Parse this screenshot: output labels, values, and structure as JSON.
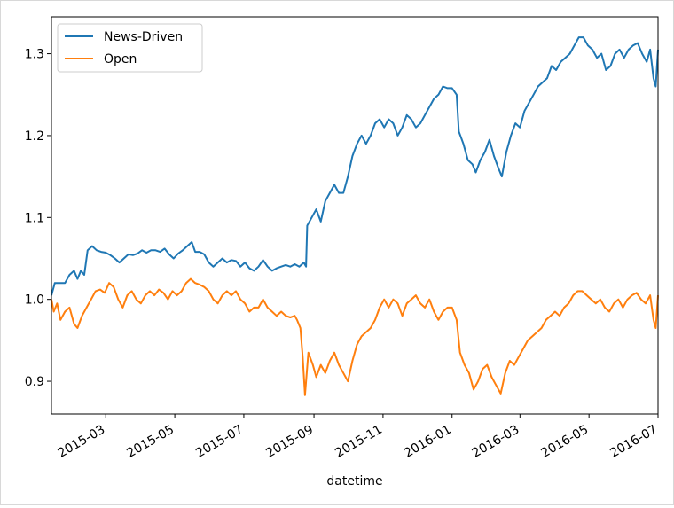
{
  "chart_data": {
    "type": "line",
    "xlabel": "datetime",
    "ylabel": "",
    "title": "",
    "x_range": [
      "2015-01-12",
      "2016-07-01"
    ],
    "ylim": [
      0.86,
      1.345
    ],
    "grid": false,
    "legend_position": "top-left",
    "x_ticks": [
      "2015-03",
      "2015-05",
      "2015-07",
      "2015-09",
      "2015-11",
      "2016-01",
      "2016-03",
      "2016-05",
      "2016-07"
    ],
    "y_ticks": [
      "0.9",
      "1.0",
      "1.1",
      "1.2",
      "1.3"
    ],
    "series": [
      {
        "name": "News-Driven",
        "color": "#1f77b4",
        "points": [
          [
            "2015-01-12",
            1.005
          ],
          [
            "2015-01-15",
            1.02
          ],
          [
            "2015-01-20",
            1.02
          ],
          [
            "2015-01-24",
            1.02
          ],
          [
            "2015-01-28",
            1.03
          ],
          [
            "2015-02-01",
            1.035
          ],
          [
            "2015-02-04",
            1.025
          ],
          [
            "2015-02-07",
            1.035
          ],
          [
            "2015-02-10",
            1.03
          ],
          [
            "2015-02-13",
            1.06
          ],
          [
            "2015-02-17",
            1.065
          ],
          [
            "2015-02-21",
            1.06
          ],
          [
            "2015-02-25",
            1.058
          ],
          [
            "2015-03-01",
            1.057
          ],
          [
            "2015-03-05",
            1.054
          ],
          [
            "2015-03-09",
            1.05
          ],
          [
            "2015-03-13",
            1.045
          ],
          [
            "2015-03-17",
            1.05
          ],
          [
            "2015-03-21",
            1.055
          ],
          [
            "2015-03-25",
            1.054
          ],
          [
            "2015-03-29",
            1.056
          ],
          [
            "2015-04-02",
            1.06
          ],
          [
            "2015-04-06",
            1.057
          ],
          [
            "2015-04-10",
            1.06
          ],
          [
            "2015-04-14",
            1.06
          ],
          [
            "2015-04-18",
            1.058
          ],
          [
            "2015-04-22",
            1.062
          ],
          [
            "2015-04-26",
            1.055
          ],
          [
            "2015-04-30",
            1.05
          ],
          [
            "2015-05-04",
            1.056
          ],
          [
            "2015-05-08",
            1.06
          ],
          [
            "2015-05-12",
            1.065
          ],
          [
            "2015-05-16",
            1.07
          ],
          [
            "2015-05-19",
            1.058
          ],
          [
            "2015-05-23",
            1.058
          ],
          [
            "2015-05-27",
            1.055
          ],
          [
            "2015-05-31",
            1.045
          ],
          [
            "2015-06-04",
            1.04
          ],
          [
            "2015-06-08",
            1.045
          ],
          [
            "2015-06-12",
            1.05
          ],
          [
            "2015-06-16",
            1.045
          ],
          [
            "2015-06-20",
            1.048
          ],
          [
            "2015-06-24",
            1.047
          ],
          [
            "2015-06-28",
            1.04
          ],
          [
            "2015-07-02",
            1.045
          ],
          [
            "2015-07-06",
            1.038
          ],
          [
            "2015-07-10",
            1.035
          ],
          [
            "2015-07-14",
            1.04
          ],
          [
            "2015-07-18",
            1.048
          ],
          [
            "2015-07-22",
            1.04
          ],
          [
            "2015-07-26",
            1.035
          ],
          [
            "2015-07-30",
            1.038
          ],
          [
            "2015-08-03",
            1.04
          ],
          [
            "2015-08-07",
            1.042
          ],
          [
            "2015-08-11",
            1.04
          ],
          [
            "2015-08-15",
            1.043
          ],
          [
            "2015-08-19",
            1.04
          ],
          [
            "2015-08-23",
            1.045
          ],
          [
            "2015-08-25",
            1.04
          ],
          [
            "2015-08-26",
            1.09
          ],
          [
            "2015-08-30",
            1.1
          ],
          [
            "2015-09-03",
            1.11
          ],
          [
            "2015-09-07",
            1.095
          ],
          [
            "2015-09-11",
            1.12
          ],
          [
            "2015-09-15",
            1.13
          ],
          [
            "2015-09-19",
            1.14
          ],
          [
            "2015-09-23",
            1.13
          ],
          [
            "2015-09-27",
            1.13
          ],
          [
            "2015-10-01",
            1.15
          ],
          [
            "2015-10-05",
            1.175
          ],
          [
            "2015-10-09",
            1.19
          ],
          [
            "2015-10-13",
            1.2
          ],
          [
            "2015-10-17",
            1.19
          ],
          [
            "2015-10-21",
            1.2
          ],
          [
            "2015-10-25",
            1.215
          ],
          [
            "2015-10-29",
            1.22
          ],
          [
            "2015-11-02",
            1.21
          ],
          [
            "2015-11-06",
            1.22
          ],
          [
            "2015-11-10",
            1.215
          ],
          [
            "2015-11-14",
            1.2
          ],
          [
            "2015-11-18",
            1.21
          ],
          [
            "2015-11-22",
            1.225
          ],
          [
            "2015-11-26",
            1.22
          ],
          [
            "2015-11-30",
            1.21
          ],
          [
            "2015-12-04",
            1.215
          ],
          [
            "2015-12-08",
            1.225
          ],
          [
            "2015-12-12",
            1.235
          ],
          [
            "2015-12-16",
            1.245
          ],
          [
            "2015-12-20",
            1.25
          ],
          [
            "2015-12-24",
            1.26
          ],
          [
            "2015-12-28",
            1.258
          ],
          [
            "2016-01-01",
            1.258
          ],
          [
            "2016-01-05",
            1.25
          ],
          [
            "2016-01-07",
            1.205
          ],
          [
            "2016-01-11",
            1.19
          ],
          [
            "2016-01-15",
            1.17
          ],
          [
            "2016-01-19",
            1.165
          ],
          [
            "2016-01-22",
            1.155
          ],
          [
            "2016-01-26",
            1.17
          ],
          [
            "2016-01-30",
            1.18
          ],
          [
            "2016-02-03",
            1.195
          ],
          [
            "2016-02-07",
            1.175
          ],
          [
            "2016-02-11",
            1.16
          ],
          [
            "2016-02-14",
            1.15
          ],
          [
            "2016-02-18",
            1.18
          ],
          [
            "2016-02-22",
            1.2
          ],
          [
            "2016-02-26",
            1.215
          ],
          [
            "2016-03-01",
            1.21
          ],
          [
            "2016-03-05",
            1.23
          ],
          [
            "2016-03-09",
            1.24
          ],
          [
            "2016-03-13",
            1.25
          ],
          [
            "2016-03-17",
            1.26
          ],
          [
            "2016-03-21",
            1.265
          ],
          [
            "2016-03-25",
            1.27
          ],
          [
            "2016-03-29",
            1.285
          ],
          [
            "2016-04-02",
            1.28
          ],
          [
            "2016-04-06",
            1.29
          ],
          [
            "2016-04-10",
            1.295
          ],
          [
            "2016-04-14",
            1.3
          ],
          [
            "2016-04-18",
            1.31
          ],
          [
            "2016-04-22",
            1.32
          ],
          [
            "2016-04-26",
            1.32
          ],
          [
            "2016-04-30",
            1.31
          ],
          [
            "2016-05-04",
            1.305
          ],
          [
            "2016-05-08",
            1.295
          ],
          [
            "2016-05-12",
            1.3
          ],
          [
            "2016-05-16",
            1.28
          ],
          [
            "2016-05-20",
            1.285
          ],
          [
            "2016-05-24",
            1.3
          ],
          [
            "2016-05-28",
            1.305
          ],
          [
            "2016-06-01",
            1.295
          ],
          [
            "2016-06-05",
            1.305
          ],
          [
            "2016-06-09",
            1.31
          ],
          [
            "2016-06-13",
            1.313
          ],
          [
            "2016-06-17",
            1.3
          ],
          [
            "2016-06-21",
            1.29
          ],
          [
            "2016-06-24",
            1.305
          ],
          [
            "2016-06-27",
            1.27
          ],
          [
            "2016-06-29",
            1.26
          ],
          [
            "2016-07-01",
            1.305
          ]
        ]
      },
      {
        "name": "Open",
        "color": "#ff7f0e",
        "points": [
          [
            "2015-01-12",
            1.0
          ],
          [
            "2015-01-14",
            0.985
          ],
          [
            "2015-01-17",
            0.995
          ],
          [
            "2015-01-20",
            0.975
          ],
          [
            "2015-01-24",
            0.985
          ],
          [
            "2015-01-28",
            0.99
          ],
          [
            "2015-02-01",
            0.97
          ],
          [
            "2015-02-04",
            0.965
          ],
          [
            "2015-02-08",
            0.98
          ],
          [
            "2015-02-12",
            0.99
          ],
          [
            "2015-02-16",
            1.0
          ],
          [
            "2015-02-20",
            1.01
          ],
          [
            "2015-02-24",
            1.012
          ],
          [
            "2015-02-28",
            1.008
          ],
          [
            "2015-03-04",
            1.02
          ],
          [
            "2015-03-08",
            1.015
          ],
          [
            "2015-03-12",
            1.0
          ],
          [
            "2015-03-16",
            0.99
          ],
          [
            "2015-03-20",
            1.005
          ],
          [
            "2015-03-24",
            1.01
          ],
          [
            "2015-03-28",
            1.0
          ],
          [
            "2015-04-01",
            0.995
          ],
          [
            "2015-04-05",
            1.005
          ],
          [
            "2015-04-09",
            1.01
          ],
          [
            "2015-04-13",
            1.005
          ],
          [
            "2015-04-17",
            1.012
          ],
          [
            "2015-04-21",
            1.008
          ],
          [
            "2015-04-25",
            1.0
          ],
          [
            "2015-04-29",
            1.01
          ],
          [
            "2015-05-03",
            1.005
          ],
          [
            "2015-05-07",
            1.01
          ],
          [
            "2015-05-11",
            1.02
          ],
          [
            "2015-05-15",
            1.025
          ],
          [
            "2015-05-19",
            1.02
          ],
          [
            "2015-05-23",
            1.018
          ],
          [
            "2015-05-27",
            1.015
          ],
          [
            "2015-05-31",
            1.01
          ],
          [
            "2015-06-04",
            1.0
          ],
          [
            "2015-06-08",
            0.995
          ],
          [
            "2015-06-12",
            1.005
          ],
          [
            "2015-06-16",
            1.01
          ],
          [
            "2015-06-20",
            1.005
          ],
          [
            "2015-06-24",
            1.01
          ],
          [
            "2015-06-28",
            1.0
          ],
          [
            "2015-07-02",
            0.995
          ],
          [
            "2015-07-06",
            0.985
          ],
          [
            "2015-07-10",
            0.99
          ],
          [
            "2015-07-14",
            0.99
          ],
          [
            "2015-07-18",
            1.0
          ],
          [
            "2015-07-22",
            0.99
          ],
          [
            "2015-07-26",
            0.985
          ],
          [
            "2015-07-30",
            0.98
          ],
          [
            "2015-08-03",
            0.985
          ],
          [
            "2015-08-07",
            0.98
          ],
          [
            "2015-08-11",
            0.978
          ],
          [
            "2015-08-15",
            0.98
          ],
          [
            "2015-08-17",
            0.975
          ],
          [
            "2015-08-20",
            0.965
          ],
          [
            "2015-08-22",
            0.93
          ],
          [
            "2015-08-24",
            0.883
          ],
          [
            "2015-08-27",
            0.935
          ],
          [
            "2015-08-31",
            0.92
          ],
          [
            "2015-09-03",
            0.905
          ],
          [
            "2015-09-07",
            0.92
          ],
          [
            "2015-09-11",
            0.91
          ],
          [
            "2015-09-15",
            0.925
          ],
          [
            "2015-09-19",
            0.935
          ],
          [
            "2015-09-23",
            0.92
          ],
          [
            "2015-09-27",
            0.91
          ],
          [
            "2015-10-01",
            0.9
          ],
          [
            "2015-10-05",
            0.925
          ],
          [
            "2015-10-09",
            0.945
          ],
          [
            "2015-10-13",
            0.955
          ],
          [
            "2015-10-17",
            0.96
          ],
          [
            "2015-10-21",
            0.965
          ],
          [
            "2015-10-25",
            0.975
          ],
          [
            "2015-10-29",
            0.99
          ],
          [
            "2015-11-02",
            1.0
          ],
          [
            "2015-11-06",
            0.99
          ],
          [
            "2015-11-10",
            1.0
          ],
          [
            "2015-11-14",
            0.995
          ],
          [
            "2015-11-18",
            0.98
          ],
          [
            "2015-11-22",
            0.995
          ],
          [
            "2015-11-26",
            1.0
          ],
          [
            "2015-11-30",
            1.005
          ],
          [
            "2015-12-04",
            0.995
          ],
          [
            "2015-12-08",
            0.99
          ],
          [
            "2015-12-12",
            1.0
          ],
          [
            "2015-12-16",
            0.985
          ],
          [
            "2015-12-20",
            0.975
          ],
          [
            "2015-12-24",
            0.985
          ],
          [
            "2015-12-28",
            0.99
          ],
          [
            "2016-01-01",
            0.99
          ],
          [
            "2016-01-05",
            0.975
          ],
          [
            "2016-01-08",
            0.935
          ],
          [
            "2016-01-12",
            0.92
          ],
          [
            "2016-01-16",
            0.91
          ],
          [
            "2016-01-20",
            0.89
          ],
          [
            "2016-01-24",
            0.9
          ],
          [
            "2016-01-28",
            0.915
          ],
          [
            "2016-02-01",
            0.92
          ],
          [
            "2016-02-05",
            0.905
          ],
          [
            "2016-02-09",
            0.895
          ],
          [
            "2016-02-13",
            0.885
          ],
          [
            "2016-02-17",
            0.91
          ],
          [
            "2016-02-21",
            0.925
          ],
          [
            "2016-02-25",
            0.92
          ],
          [
            "2016-02-29",
            0.93
          ],
          [
            "2016-03-04",
            0.94
          ],
          [
            "2016-03-08",
            0.95
          ],
          [
            "2016-03-12",
            0.955
          ],
          [
            "2016-03-16",
            0.96
          ],
          [
            "2016-03-20",
            0.965
          ],
          [
            "2016-03-24",
            0.975
          ],
          [
            "2016-03-28",
            0.98
          ],
          [
            "2016-04-01",
            0.985
          ],
          [
            "2016-04-05",
            0.98
          ],
          [
            "2016-04-09",
            0.99
          ],
          [
            "2016-04-13",
            0.995
          ],
          [
            "2016-04-17",
            1.005
          ],
          [
            "2016-04-21",
            1.01
          ],
          [
            "2016-04-25",
            1.01
          ],
          [
            "2016-04-29",
            1.005
          ],
          [
            "2016-05-03",
            1.0
          ],
          [
            "2016-05-07",
            0.995
          ],
          [
            "2016-05-11",
            1.0
          ],
          [
            "2016-05-15",
            0.99
          ],
          [
            "2016-05-19",
            0.985
          ],
          [
            "2016-05-23",
            0.995
          ],
          [
            "2016-05-27",
            1.0
          ],
          [
            "2016-05-31",
            0.99
          ],
          [
            "2016-06-04",
            1.0
          ],
          [
            "2016-06-08",
            1.005
          ],
          [
            "2016-06-12",
            1.008
          ],
          [
            "2016-06-16",
            1.0
          ],
          [
            "2016-06-20",
            0.995
          ],
          [
            "2016-06-24",
            1.005
          ],
          [
            "2016-06-27",
            0.975
          ],
          [
            "2016-06-29",
            0.965
          ],
          [
            "2016-07-01",
            1.005
          ]
        ]
      }
    ]
  }
}
